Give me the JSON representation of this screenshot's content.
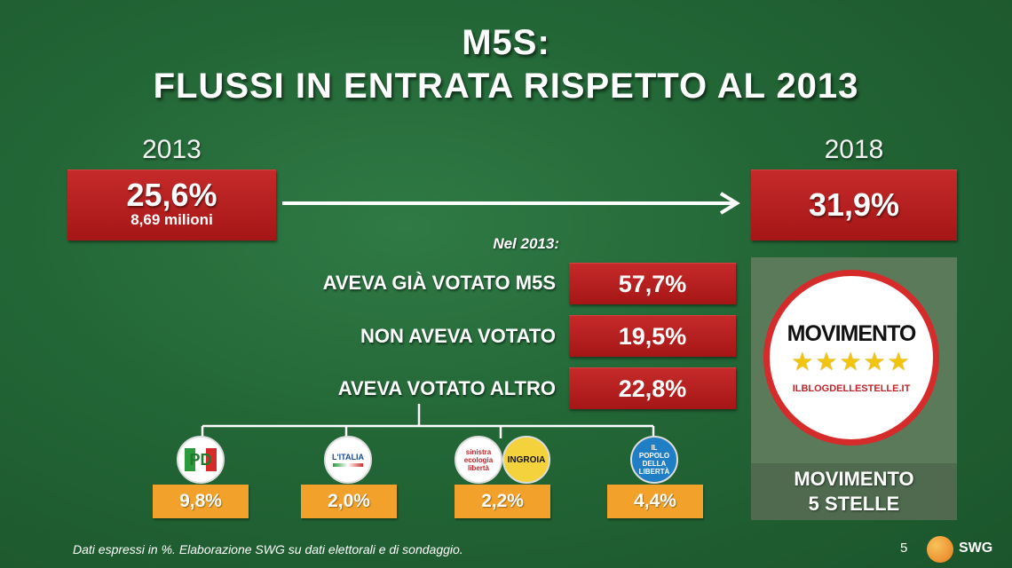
{
  "title_line1": "M5S:",
  "title_line2": "FLUSSI IN ENTRATA RISPETTO AL 2013",
  "left": {
    "year": "2013",
    "value": "25,6%",
    "sub": "8,69 milioni"
  },
  "right": {
    "year": "2018",
    "value": "31,9%"
  },
  "nel_label": "Nel 2013:",
  "rows": [
    {
      "label": "AVEVA GIÀ VOTATO M5S",
      "value": "57,7%"
    },
    {
      "label": "NON AVEVA VOTATO",
      "value": "19,5%"
    },
    {
      "label": "AVEVA VOTATO ALTRO",
      "value": "22,8%"
    }
  ],
  "parties": [
    {
      "logo": "pd-logo",
      "logo_text": "PD",
      "value": "9,8%"
    },
    {
      "logo": "scelta-civica-logo",
      "logo_text": "L'ITALIA",
      "value": "2,0%"
    },
    {
      "logo": "sel-ingroia-logo",
      "logo_text": "sinistra ecologia libertà",
      "logo_text2": "INGROIA",
      "value": "2,2%"
    },
    {
      "logo": "pdl-logo",
      "logo_text": "IL POPOLO DELLA LIBERTÀ",
      "value": "4,4%"
    }
  ],
  "m5s_logo": {
    "word": "MOVIMENTO",
    "url": "ILBLOGDELLESTELLE.IT"
  },
  "m5s_caption_line1": "MOVIMENTO",
  "m5s_caption_line2": "5 STELLE",
  "footer": "Dati espressi in %. Elaborazione SWG su dati elettorali e di sondaggio.",
  "page_number": "5",
  "brand": "SWG",
  "colors": {
    "background": "#236636",
    "red": "#b31d1d",
    "orange": "#f2a12a"
  }
}
